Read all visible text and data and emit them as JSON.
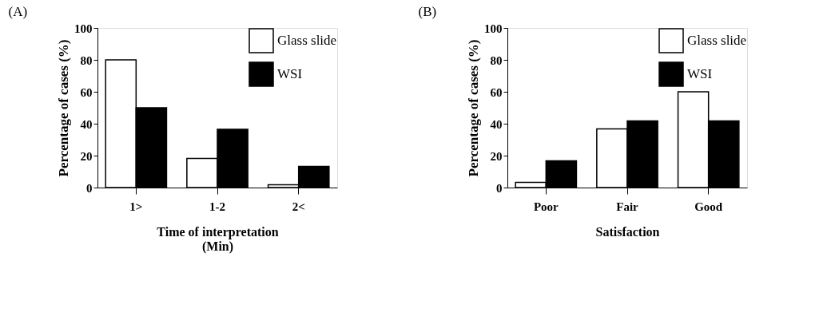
{
  "chart_data": [
    {
      "type": "bar",
      "title": "(A)",
      "xlabel": "Time of interpretation\n(Min)",
      "ylabel": "Percentage of cases (%)",
      "categories": [
        "1>",
        "1-2",
        "2<"
      ],
      "series": [
        {
          "name": "Glass slide",
          "color": "#ffffff",
          "values": [
            80,
            18.2,
            1.8
          ]
        },
        {
          "name": "WSI",
          "color": "#000000",
          "values": [
            50,
            36.5,
            13.2
          ]
        }
      ],
      "ylim": [
        0,
        100
      ],
      "yticks": [
        0,
        20,
        40,
        60,
        80,
        100
      ],
      "grid": false,
      "legend": "top right"
    },
    {
      "type": "bar",
      "title": "(B)",
      "xlabel": "Satisfaction",
      "ylabel": "Percentage of cases (%)",
      "categories": [
        "Poor",
        "Fair",
        "Good"
      ],
      "series": [
        {
          "name": "Glass slide",
          "color": "#ffffff",
          "values": [
            3.3,
            36.7,
            60
          ]
        },
        {
          "name": "WSI",
          "color": "#000000",
          "values": [
            16.7,
            41.7,
            41.7
          ]
        }
      ],
      "ylim": [
        0,
        100
      ],
      "yticks": [
        0,
        20,
        40,
        60,
        80,
        100
      ],
      "grid": false,
      "legend": "top right"
    }
  ]
}
